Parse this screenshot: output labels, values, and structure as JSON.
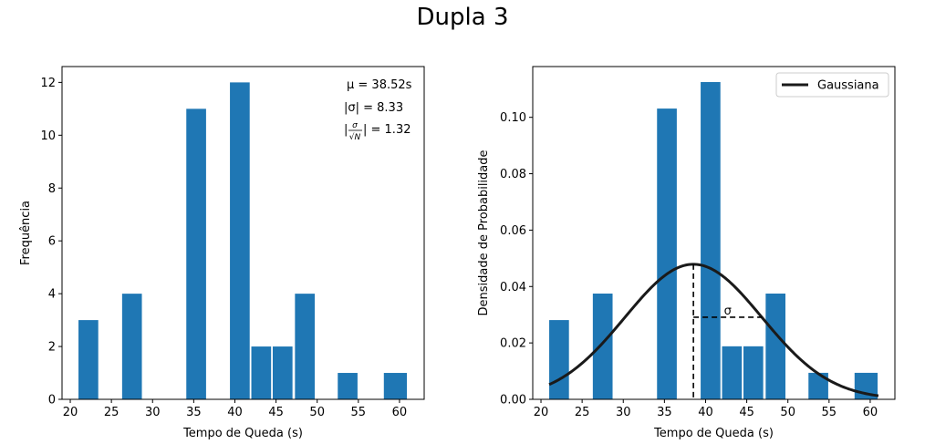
{
  "figure": {
    "title": "Dupla 3"
  },
  "chart_data": [
    {
      "type": "bar",
      "xlabel": "Tempo de Queda (s)",
      "ylabel": "Frequência",
      "xlim": [
        19.0,
        63.0
      ],
      "ylim": [
        0,
        12.6
      ],
      "xticks": [
        20,
        25,
        30,
        35,
        40,
        45,
        50,
        55,
        60
      ],
      "yticks": [
        0,
        2,
        4,
        6,
        8,
        10,
        12
      ],
      "bin_edges": [
        21.0,
        23.63,
        26.26,
        28.89,
        31.52,
        34.15,
        36.78,
        39.41,
        42.04,
        44.67,
        47.3,
        49.93,
        52.56,
        55.19,
        57.82,
        60.45,
        61.0
      ],
      "bars": [
        {
          "x0": 21.0,
          "x1": 23.4,
          "value": 3
        },
        {
          "x0": 26.3,
          "x1": 28.7,
          "value": 4
        },
        {
          "x0": 34.1,
          "x1": 36.5,
          "value": 11
        },
        {
          "x0": 39.4,
          "x1": 41.8,
          "value": 12
        },
        {
          "x0": 42.0,
          "x1": 44.4,
          "value": 2
        },
        {
          "x0": 44.6,
          "x1": 47.0,
          "value": 2
        },
        {
          "x0": 47.3,
          "x1": 49.7,
          "value": 4
        },
        {
          "x0": 52.5,
          "x1": 54.9,
          "value": 1
        },
        {
          "x0": 58.1,
          "x1": 60.9,
          "value": 1
        }
      ],
      "color": "#1f77b4",
      "annotations": {
        "mu": "μ = 38.52s",
        "sigma": "|σ| = 8.33",
        "sem_prefix": "|",
        "sem_num": "σ",
        "sem_den": "√N",
        "sem_value": "| = 1.32"
      },
      "grid": false
    },
    {
      "type": "bar",
      "xlabel": "Tempo de Queda (s)",
      "ylabel": "Densidade de Probabilidade",
      "xlim": [
        19.0,
        63.0
      ],
      "ylim": [
        0,
        0.118
      ],
      "xticks": [
        20,
        25,
        30,
        35,
        40,
        45,
        50,
        55,
        60
      ],
      "yticks": [
        0.0,
        0.02,
        0.04,
        0.06,
        0.08,
        0.1
      ],
      "ytick_labels": [
        "0.00",
        "0.02",
        "0.04",
        "0.06",
        "0.08",
        "0.10"
      ],
      "bars": [
        {
          "x0": 21.0,
          "x1": 23.4,
          "value": 0.0281
        },
        {
          "x0": 26.3,
          "x1": 28.7,
          "value": 0.0375
        },
        {
          "x0": 34.1,
          "x1": 36.5,
          "value": 0.1031
        },
        {
          "x0": 39.4,
          "x1": 41.8,
          "value": 0.1125
        },
        {
          "x0": 42.0,
          "x1": 44.4,
          "value": 0.0188
        },
        {
          "x0": 44.6,
          "x1": 47.0,
          "value": 0.0188
        },
        {
          "x0": 47.3,
          "x1": 49.7,
          "value": 0.0375
        },
        {
          "x0": 52.5,
          "x1": 54.9,
          "value": 0.0094
        },
        {
          "x0": 58.1,
          "x1": 60.9,
          "value": 0.0094
        }
      ],
      "color": "#1f77b4",
      "series": [
        {
          "name": "Gaussiana",
          "type": "line",
          "mu": 38.52,
          "sigma": 8.33,
          "x_range": [
            21.0,
            61.0
          ],
          "color": "#1a1a1a"
        }
      ],
      "sigma_marker": {
        "label": "σ",
        "mean": 38.52,
        "x_end": 46.85,
        "y": 0.0291,
        "peak": 0.0479
      },
      "legend": "top-right",
      "grid": false
    }
  ]
}
